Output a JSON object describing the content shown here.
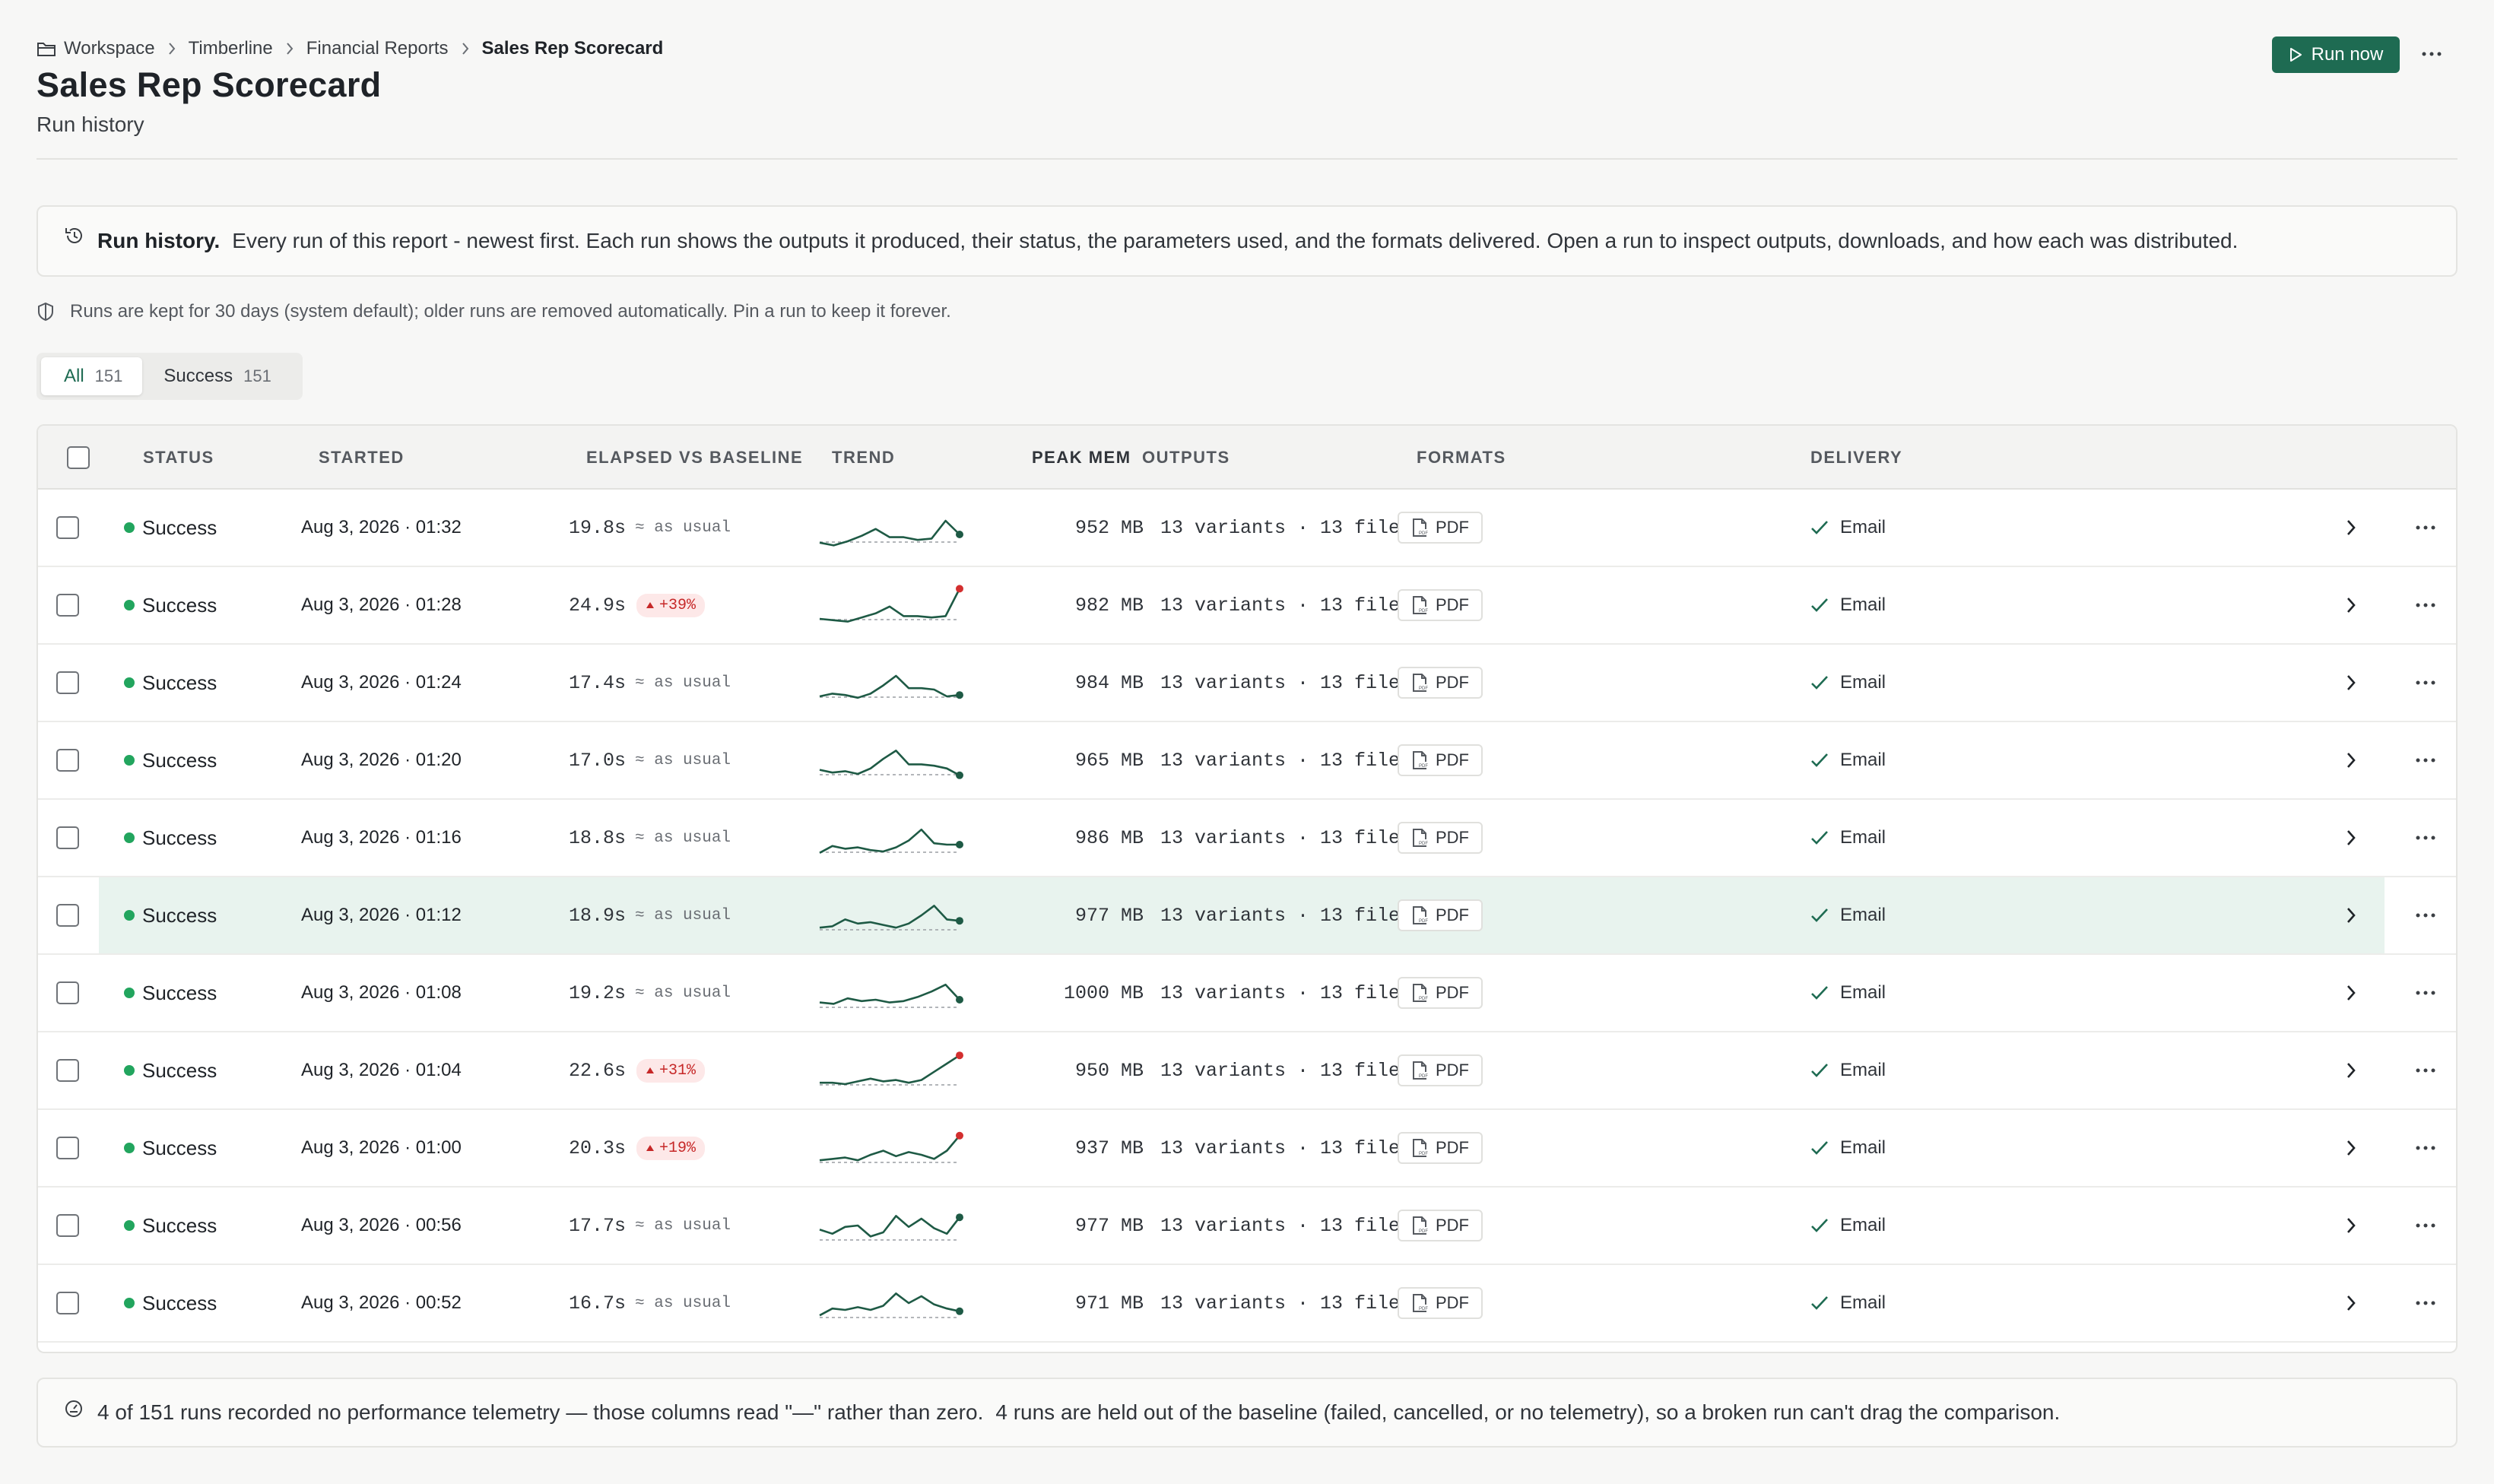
{
  "breadcrumb": {
    "items": [
      "Workspace",
      "Timberline",
      "Financial Reports"
    ],
    "current": "Sales Rep Scorecard"
  },
  "header": {
    "title": "Sales Rep Scorecard",
    "subtitle": "Run history",
    "run_now_label": "Run now"
  },
  "info": {
    "lead": "Run history.",
    "body": "Every run of this report - newest first. Each run shows the outputs it produced, their status, the parameters used, and the formats delivered. Open a run to inspect outputs, downloads, and how each was distributed."
  },
  "retention": "Runs are kept for 30 days (system default); older runs are removed automatically. Pin a run to keep it forever.",
  "tabs": [
    {
      "label": "All",
      "count": "151",
      "active": true
    },
    {
      "label": "Success",
      "count": "151",
      "active": false
    }
  ],
  "columns": {
    "status": "STATUS",
    "started": "STARTED",
    "elapsed": "ELAPSED VS BASELINE",
    "trend": "TREND",
    "peak_mem": "PEAK MEM",
    "outputs": "OUTPUTS",
    "formats": "FORMATS",
    "delivery": "DELIVERY"
  },
  "colors": {
    "accent": "#1e6b52",
    "success": "#22a55e",
    "trend_line": "#1e5a45",
    "alert": "#d32f2f",
    "highlight_row": "#e8f3ee"
  },
  "rows": [
    {
      "status": "Success",
      "started": "Aug 3, 2026 · 01:32",
      "elapsed": "19.8s",
      "delta": "≈ as usual",
      "delta_type": "usual",
      "trend": [
        4,
        2,
        5,
        9,
        14,
        8,
        8,
        6,
        7,
        20,
        10
      ],
      "mem": "952 MB",
      "outputs": "13 variants · 13 files",
      "format": "PDF",
      "delivery": "Email",
      "highlight": false
    },
    {
      "status": "Success",
      "started": "Aug 3, 2026 · 01:28",
      "elapsed": "24.9s",
      "delta": "+39%",
      "delta_type": "up",
      "trend": [
        5,
        4,
        3,
        6,
        9,
        14,
        7,
        7,
        6,
        7,
        27
      ],
      "mem": "982 MB",
      "outputs": "13 variants · 13 files",
      "format": "PDF",
      "delivery": "Email",
      "highlight": false
    },
    {
      "status": "Success",
      "started": "Aug 3, 2026 · 01:24",
      "elapsed": "17.4s",
      "delta": "≈ as usual",
      "delta_type": "usual",
      "trend": [
        5,
        7,
        6,
        4,
        7,
        13,
        20,
        11,
        11,
        10,
        5,
        6
      ],
      "mem": "984 MB",
      "outputs": "13 variants · 13 files",
      "format": "PDF",
      "delivery": "Email",
      "highlight": false
    },
    {
      "status": "Success",
      "started": "Aug 3, 2026 · 01:20",
      "elapsed": "17.0s",
      "delta": "≈ as usual",
      "delta_type": "usual",
      "trend": [
        8,
        6,
        7,
        5,
        9,
        16,
        22,
        12,
        12,
        11,
        9,
        4
      ],
      "mem": "965 MB",
      "outputs": "13 variants · 13 files",
      "format": "PDF",
      "delivery": "Email",
      "highlight": false
    },
    {
      "status": "Success",
      "started": "Aug 3, 2026 · 01:16",
      "elapsed": "18.8s",
      "delta": "≈ as usual",
      "delta_type": "usual",
      "trend": [
        4,
        9,
        7,
        8,
        6,
        5,
        8,
        13,
        21,
        11,
        10,
        10
      ],
      "mem": "986 MB",
      "outputs": "13 variants · 13 files",
      "format": "PDF",
      "delivery": "Email",
      "highlight": false
    },
    {
      "status": "Success",
      "started": "Aug 3, 2026 · 01:12",
      "elapsed": "18.9s",
      "delta": "≈ as usual",
      "delta_type": "usual",
      "trend": [
        6,
        7,
        12,
        9,
        10,
        8,
        6,
        9,
        15,
        22,
        12,
        11
      ],
      "mem": "977 MB",
      "outputs": "13 variants · 13 files",
      "format": "PDF",
      "delivery": "Email",
      "highlight": true
    },
    {
      "status": "Success",
      "started": "Aug 3, 2026 · 01:08",
      "elapsed": "19.2s",
      "delta": "≈ as usual",
      "delta_type": "usual",
      "trend": [
        8,
        7,
        11,
        9,
        10,
        8,
        9,
        12,
        16,
        21,
        10
      ],
      "mem": "1000 MB",
      "outputs": "13 variants · 13 files",
      "format": "PDF",
      "delivery": "Email",
      "highlight": false
    },
    {
      "status": "Success",
      "started": "Aug 3, 2026 · 01:04",
      "elapsed": "22.6s",
      "delta": "+31%",
      "delta_type": "up",
      "trend": [
        6,
        6,
        5,
        7,
        9,
        7,
        8,
        6,
        8,
        14,
        20,
        26
      ],
      "mem": "950 MB",
      "outputs": "13 variants · 13 files",
      "format": "PDF",
      "delivery": "Email",
      "highlight": false
    },
    {
      "status": "Success",
      "started": "Aug 3, 2026 · 01:00",
      "elapsed": "20.3s",
      "delta": "+19%",
      "delta_type": "up",
      "trend": [
        6,
        7,
        8,
        6,
        10,
        13,
        9,
        12,
        10,
        7,
        13,
        24
      ],
      "mem": "937 MB",
      "outputs": "13 variants · 13 files",
      "format": "PDF",
      "delivery": "Email",
      "highlight": false
    },
    {
      "status": "Success",
      "started": "Aug 3, 2026 · 00:56",
      "elapsed": "17.7s",
      "delta": "≈ as usual",
      "delta_type": "usual",
      "trend": [
        12,
        9,
        14,
        15,
        7,
        10,
        22,
        14,
        20,
        13,
        9,
        21
      ],
      "mem": "977 MB",
      "outputs": "13 variants · 13 files",
      "format": "PDF",
      "delivery": "Email",
      "highlight": false
    },
    {
      "status": "Success",
      "started": "Aug 3, 2026 · 00:52",
      "elapsed": "16.7s",
      "delta": "≈ as usual",
      "delta_type": "usual",
      "trend": [
        6,
        11,
        10,
        12,
        10,
        13,
        22,
        15,
        20,
        14,
        11,
        9
      ],
      "mem": "971 MB",
      "outputs": "13 variants · 13 files",
      "format": "PDF",
      "delivery": "Email",
      "highlight": false
    }
  ],
  "footer": {
    "telemetry": "4 of 151 runs recorded no performance telemetry — those columns read \"—\" rather than zero.",
    "baseline": "4 runs are held out of the baseline (failed, cancelled, or no telemetry), so a broken run can't drag the comparison."
  }
}
